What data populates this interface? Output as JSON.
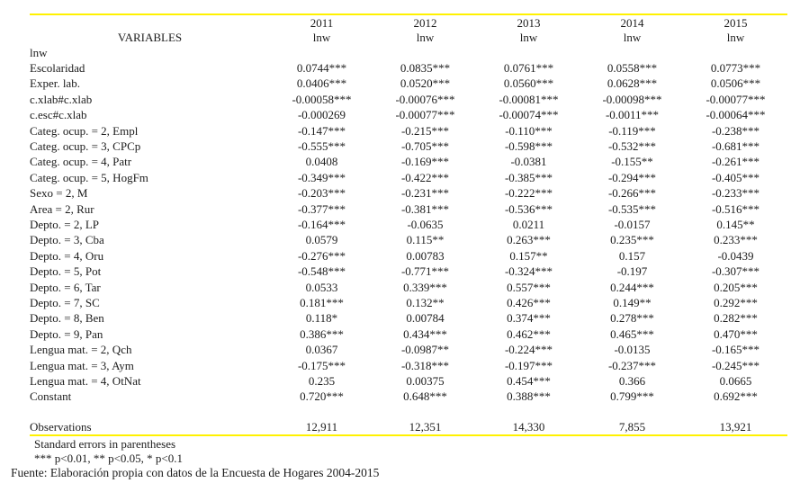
{
  "table": {
    "header": {
      "variables_label": "VARIABLES",
      "years": [
        "2011",
        "2012",
        "2013",
        "2014",
        "2015"
      ],
      "dep_var": "lnw"
    },
    "rows": [
      {
        "label": "lnw",
        "values": [
          "",
          "",
          "",
          "",
          ""
        ]
      },
      {
        "label": "Escolaridad",
        "values": [
          "0.0744***",
          "0.0835***",
          "0.0761***",
          "0.0558***",
          "0.0773***"
        ]
      },
      {
        "label": "Exper. lab.",
        "values": [
          "0.0406***",
          "0.0520***",
          "0.0560***",
          "0.0628***",
          "0.0506***"
        ]
      },
      {
        "label": "c.xlab#c.xlab",
        "values": [
          "-0.00058***",
          "-0.00076***",
          "-0.00081***",
          "-0.00098***",
          "-0.00077***"
        ]
      },
      {
        "label": "c.esc#c.xlab",
        "values": [
          "-0.000269",
          "-0.00077***",
          "-0.00074***",
          "-0.0011***",
          "-0.00064***"
        ]
      },
      {
        "label": "Categ. ocup. = 2, Empl",
        "values": [
          "-0.147***",
          "-0.215***",
          "-0.110***",
          "-0.119***",
          "-0.238***"
        ]
      },
      {
        "label": "Categ. ocup. = 3, CPCp",
        "values": [
          "-0.555***",
          "-0.705***",
          "-0.598***",
          "-0.532***",
          "-0.681***"
        ]
      },
      {
        "label": "Categ. ocup. = 4, Patr",
        "values": [
          "0.0408",
          "-0.169***",
          "-0.0381",
          "-0.155**",
          "-0.261***"
        ]
      },
      {
        "label": "Categ. ocup. = 5, HogFm",
        "values": [
          "-0.349***",
          "-0.422***",
          "-0.385***",
          "-0.294***",
          "-0.405***"
        ]
      },
      {
        "label": "Sexo = 2, M",
        "values": [
          "-0.203***",
          "-0.231***",
          "-0.222***",
          "-0.266***",
          "-0.233***"
        ]
      },
      {
        "label": "Area = 2, Rur",
        "values": [
          "-0.377***",
          "-0.381***",
          "-0.536***",
          "-0.535***",
          "-0.516***"
        ]
      },
      {
        "label": "Depto. = 2, LP",
        "values": [
          "-0.164***",
          "-0.0635",
          "0.0211",
          "-0.0157",
          "0.145**"
        ]
      },
      {
        "label": "Depto. = 3, Cba",
        "values": [
          "0.0579",
          "0.115**",
          "0.263***",
          "0.235***",
          "0.233***"
        ]
      },
      {
        "label": "Depto. = 4, Oru",
        "values": [
          "-0.276***",
          "0.00783",
          "0.157**",
          "0.157",
          "-0.0439"
        ]
      },
      {
        "label": "Depto. = 5, Pot",
        "values": [
          "-0.548***",
          "-0.771***",
          "-0.324***",
          "-0.197",
          "-0.307***"
        ]
      },
      {
        "label": "Depto. = 6, Tar",
        "values": [
          "0.0533",
          "0.339***",
          "0.557***",
          "0.244***",
          "0.205***"
        ]
      },
      {
        "label": "Depto. = 7, SC",
        "values": [
          "0.181***",
          "0.132**",
          "0.426***",
          "0.149**",
          "0.292***"
        ]
      },
      {
        "label": "Depto. = 8, Ben",
        "values": [
          "0.118*",
          "0.00784",
          "0.374***",
          "0.278***",
          "0.282***"
        ]
      },
      {
        "label": "Depto. = 9, Pan",
        "values": [
          "0.386***",
          "0.434***",
          "0.462***",
          "0.465***",
          "0.470***"
        ]
      },
      {
        "label": "Lengua mat. = 2, Qch",
        "values": [
          "0.0367",
          "-0.0987**",
          "-0.224***",
          "-0.0135",
          "-0.165***"
        ]
      },
      {
        "label": "Lengua mat. = 3, Aym",
        "values": [
          "-0.175***",
          "-0.318***",
          "-0.197***",
          "-0.237***",
          "-0.245***"
        ]
      },
      {
        "label": "Lengua mat. = 4, OtNat",
        "values": [
          "0.235",
          "0.00375",
          "0.454***",
          "0.366",
          "0.0665"
        ]
      },
      {
        "label": "Constant",
        "values": [
          "0.720***",
          "0.648***",
          "0.388***",
          "0.799***",
          "0.692***"
        ]
      }
    ],
    "observations": {
      "label": "Observations",
      "values": [
        "12,911",
        "12,351",
        "14,330",
        "7,855",
        "13,921"
      ]
    }
  },
  "notes": {
    "se_note": "Standard errors in parentheses",
    "significance_note": "*** p<0.01, ** p<0.05, * p<0.1",
    "source": "Fuente: Elaboración propia con datos de la Encuesta de Hogares 2004-2015"
  },
  "colors": {
    "rule": "#fff100",
    "text": "#1c1c1c",
    "background": "#ffffff"
  }
}
